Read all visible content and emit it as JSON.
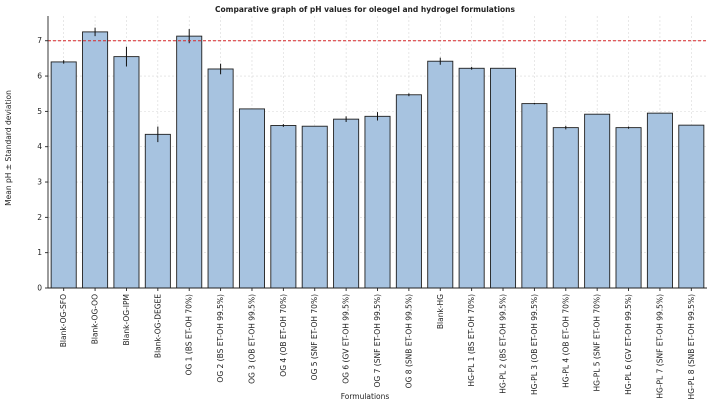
{
  "chart_data": {
    "type": "bar",
    "title": "Comparative graph of pH values for oleogel and hydrogel formulations",
    "xlabel": "Formulations",
    "ylabel": "Mean pH ± Standard deviation",
    "ylim": [
      0,
      7.7
    ],
    "yticks": [
      0,
      1,
      2,
      3,
      4,
      5,
      6,
      7
    ],
    "grid": true,
    "reference_line": {
      "y": 7,
      "color": "#d62728",
      "style": "dashed"
    },
    "bar_color": "#a7c3e0",
    "categories": [
      "Blank-OG-SFO",
      "Blank-OG-OO",
      "Blank-OG-IPM",
      "Blank-OG-DEGEE",
      "OG 1 (BS ET-OH 70%)",
      "OG 2 (BS ET-OH 99.5%)",
      "OG 3 (OB ET-OH 99.5%)",
      "OG 4 (OB ET-OH 70%)",
      "OG 5 (SNF ET-OH 70%)",
      "OG 6 (GV ET-OH 99.5%)",
      "OG 7 (SNF ET-OH 99.5%)",
      "OG 8 (SNB ET-OH 99.5%)",
      "Blank-HG",
      "HG-PL 1 (BS ET-OH 70%)",
      "HG-PL 2 (BS ET-OH 99.5%)",
      "HG-PL 3 (OB ET-OH 99.5%)",
      "HG-PL 4 (OB ET-OH 70%)",
      "HG-PL 5 (SNF ET-OH 70%)",
      "HG-PL 6 (GV ET-OH 99.5%)",
      "HG-PL 7 (SNF ET-OH 99.5%)",
      "HG-PL 8 (SNB ET-OH 99.5%)"
    ],
    "series": [
      {
        "values": [
          6.4,
          7.25,
          6.55,
          4.35,
          7.13,
          6.2,
          5.07,
          4.6,
          4.58,
          4.78,
          4.86,
          5.47,
          6.42,
          6.22,
          6.22,
          5.22,
          4.54,
          4.92,
          4.54,
          4.95,
          4.61
        ],
        "errors": [
          0.05,
          0.12,
          0.28,
          0.22,
          0.2,
          0.15,
          0.0,
          0.04,
          0.0,
          0.08,
          0.12,
          0.04,
          0.1,
          0.04,
          0.0,
          0.02,
          0.05,
          0.0,
          0.03,
          0.0,
          0.0
        ]
      }
    ]
  }
}
